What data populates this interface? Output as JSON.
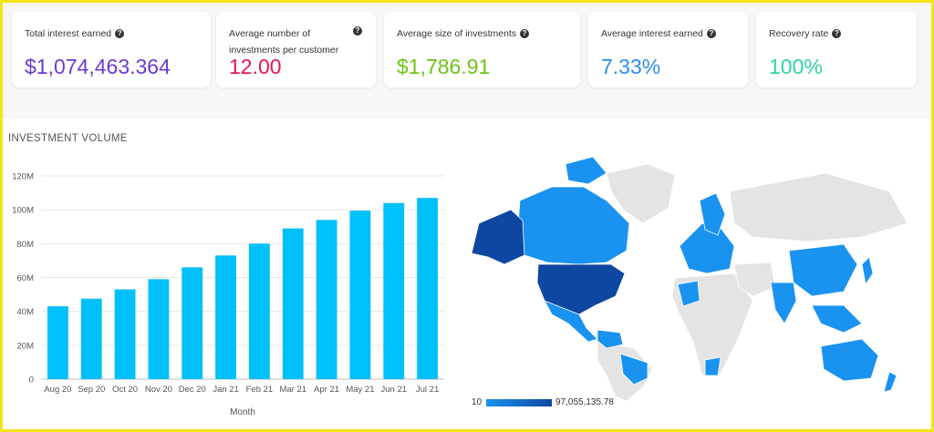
{
  "kpis": [
    {
      "label": "Total interest earned",
      "value": "$1,074,463.364",
      "color": "#6a3bd1",
      "help_icon": "question-circle-icon"
    },
    {
      "label": "Average number of investments per customer",
      "value": "12.00",
      "color": "#e8174f",
      "help_icon": "question-circle-icon"
    },
    {
      "label": "Average size of investments",
      "value": "$1,786.91",
      "color": "#6cc417",
      "help_icon": "question-circle-icon"
    },
    {
      "label": "Average interest earned",
      "value": "7.33%",
      "color": "#2d8cf0",
      "help_icon": "question-circle-icon"
    },
    {
      "label": "Recovery rate",
      "value": "100%",
      "color": "#2ed3a8",
      "help_icon": "question-circle-icon"
    }
  ],
  "chart_data": {
    "type": "bar",
    "title": "INVESTMENT VOLUME",
    "xlabel": "Month",
    "ylabel": "",
    "categories": [
      "Aug 20",
      "Sep 20",
      "Oct 20",
      "Nov 20",
      "Dec 20",
      "Jan 21",
      "Feb 21",
      "Mar 21",
      "Apr 21",
      "May 21",
      "Jun 21",
      "Jul 21"
    ],
    "values": [
      43000000,
      47500000,
      53000000,
      59000000,
      66000000,
      73000000,
      80000000,
      89000000,
      94000000,
      99500000,
      104000000,
      107000000
    ],
    "ylim": [
      0,
      120000000
    ],
    "yticks": [
      {
        "value": 0,
        "label": "0"
      },
      {
        "value": 20000000,
        "label": "20M"
      },
      {
        "value": 40000000,
        "label": "40M"
      },
      {
        "value": 60000000,
        "label": "60M"
      },
      {
        "value": 80000000,
        "label": "80M"
      },
      {
        "value": 100000000,
        "label": "100M"
      },
      {
        "value": 120000000,
        "label": "120M"
      }
    ],
    "grid": true,
    "bar_color": "#00c0f9"
  },
  "map": {
    "legend_min": "10",
    "legend_max": "97,055,135.78",
    "color_low": "#1a93f0",
    "color_high": "#0d47a1",
    "no_data_color": "#e4e4e4"
  }
}
